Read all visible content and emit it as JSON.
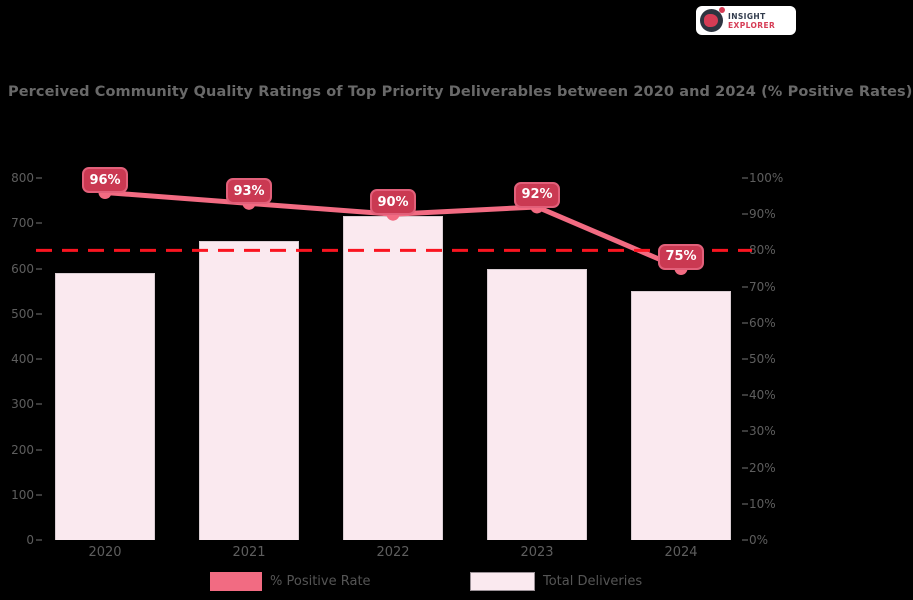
{
  "logo": {
    "line1": "INSIGHT",
    "line2": "EXPLORER"
  },
  "chart_data": {
    "type": "combo",
    "title": "Perceived Community Quality Ratings of Top Priority Deliverables between 2020 and 2024 (% Positive Rates)",
    "categories": [
      "2020",
      "2021",
      "2022",
      "2023",
      "2024"
    ],
    "series": [
      {
        "name": "% Positive Rate",
        "type": "line",
        "axis": "right",
        "values": [
          96,
          93,
          90,
          92,
          75
        ],
        "data_labels": [
          "96%",
          "93%",
          "90%",
          "92%",
          "75%"
        ],
        "color": "#f26b82"
      },
      {
        "name": "Total Deliveries",
        "type": "bar",
        "axis": "left",
        "values": [
          590,
          660,
          715,
          600,
          550
        ],
        "color": "#fae9ef"
      }
    ],
    "threshold_line": {
      "axis": "right",
      "value": 80,
      "style": "dashed",
      "color": "#fa1420"
    },
    "left_axis": {
      "min": 0,
      "max": 800,
      "ticks": [
        "800",
        "700",
        "600",
        "500",
        "400",
        "300",
        "200",
        "100",
        "0"
      ]
    },
    "right_axis": {
      "min": 0,
      "max": 100,
      "ticks": [
        "100%",
        "90%",
        "80%",
        "70%",
        "60%",
        "50%",
        "40%",
        "30%",
        "20%",
        "10%",
        "0%"
      ]
    },
    "grid": false,
    "legend_position": "bottom"
  },
  "legend": {
    "items": [
      {
        "label": "% Positive Rate",
        "swatch_color": "#f26b82"
      },
      {
        "label": "Total Deliveries",
        "swatch_color": "#fae9ef"
      }
    ]
  },
  "colors": {
    "background": "#000000",
    "title_text": "#696969",
    "axis_text": "#5e5e5e",
    "bar_fill": "#fae9ef",
    "bar_border": "#d9cdd2",
    "line": "#f26b82",
    "badge_fill": "#ca3952",
    "badge_border": "#e2607a",
    "threshold": "#fa1420",
    "logo_dark": "#2d3440",
    "logo_accent": "#d63c55"
  }
}
